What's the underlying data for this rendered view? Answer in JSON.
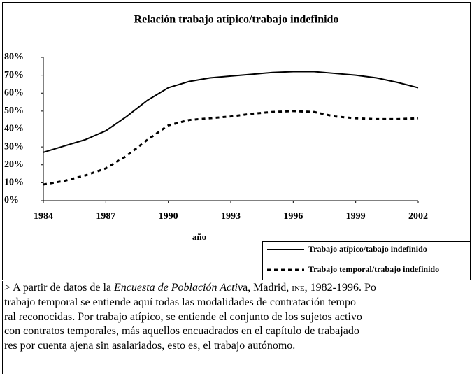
{
  "chart_data": {
    "type": "line",
    "title": "Relación trabajo atípico/trabajo indefinido",
    "x_label": "año",
    "x": [
      1984,
      1985,
      1986,
      1987,
      1988,
      1989,
      1990,
      1991,
      1992,
      1993,
      1994,
      1995,
      1996,
      1997,
      1998,
      1999,
      2000,
      2001,
      2002
    ],
    "series": [
      {
        "name": "Trabajo atípico/tabajo indefinido",
        "color": "#000000",
        "style": "solid",
        "values": [
          27,
          30.5,
          34,
          39,
          47,
          56,
          63,
          66.5,
          68.5,
          69.5,
          70.5,
          71.5,
          72,
          72,
          71,
          70,
          68.5,
          66,
          63
        ]
      },
      {
        "name": "Trabajo temporal/trabajo indefinido",
        "color": "#000000",
        "style": "dashed",
        "values": [
          9,
          11,
          14,
          18,
          25,
          34,
          42,
          45,
          46,
          47,
          48.5,
          49.5,
          50,
          49.5,
          47,
          46,
          45.5,
          45.5,
          46
        ]
      }
    ],
    "xlim": [
      1984,
      2002
    ],
    "xticks": [
      1984,
      1987,
      1990,
      1993,
      1996,
      1999,
      2002
    ],
    "ylim": [
      0,
      80
    ],
    "yticks": [
      {
        "value": 0,
        "label": "0%"
      },
      {
        "value": 10,
        "label": "10%"
      },
      {
        "value": 20,
        "label": "20%"
      },
      {
        "value": 30,
        "label": "30%"
      },
      {
        "value": 40,
        "label": "40%"
      },
      {
        "value": 50,
        "label": "50%"
      },
      {
        "value": 60,
        "label": "60%"
      },
      {
        "value": 70,
        "label": "70%"
      },
      {
        "value": 80,
        "label": "80%"
      }
    ],
    "grid": false,
    "legend": "bottom-right"
  },
  "caption": {
    "first_line": [
      "> A partir de datos de la ",
      "Encuesta de Población Activ",
      "a, Madrid, ",
      "INE",
      ", 1982-1996. Po"
    ],
    "lines": [
      "trabajo temporal se entiende aquí todas las modalidades de contratación tempo",
      "ral reconocidas. Por trabajo atípico, se entiende el conjunto de los sujetos activo",
      "con contratos temporales, más aquellos encuadrados en el capítulo de trabajado",
      "res por cuenta ajena sin asalariados, esto es, el trabajo autónomo."
    ]
  }
}
